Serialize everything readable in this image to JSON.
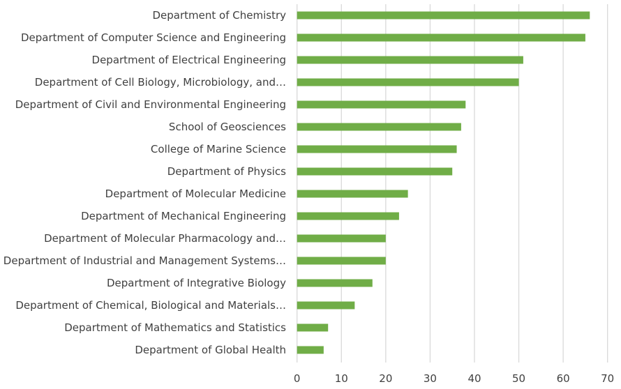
{
  "chart_data": {
    "type": "bar",
    "orientation": "horizontal",
    "categories": [
      "Department of Chemistry",
      "Department of Computer Science and Engineering",
      "Department of Electrical Engineering",
      "Department of Cell Biology, Microbiology, and…",
      "Department of Civil and Environmental Engineering",
      "School of Geosciences",
      "College of Marine Science",
      "Department of Physics",
      "Department of Molecular Medicine",
      "Department of Mechanical Engineering",
      "Department of Molecular Pharmacology and…",
      "Department of Industrial and Management Systems…",
      "Department of Integrative Biology",
      "Department of Chemical, Biological and Materials…",
      "Department of Mathematics and Statistics",
      "Department of Global Health"
    ],
    "values": [
      66,
      65,
      51,
      50,
      38,
      37,
      36,
      35,
      25,
      23,
      20,
      20,
      17,
      13,
      7,
      6
    ],
    "xlim": [
      0,
      70
    ],
    "xticks": [
      "0",
      "10",
      "20",
      "30",
      "40",
      "50",
      "60",
      "70"
    ],
    "grid": "vertical",
    "bar_color": "#70ad47",
    "grid_color": "#d9d9d9"
  }
}
